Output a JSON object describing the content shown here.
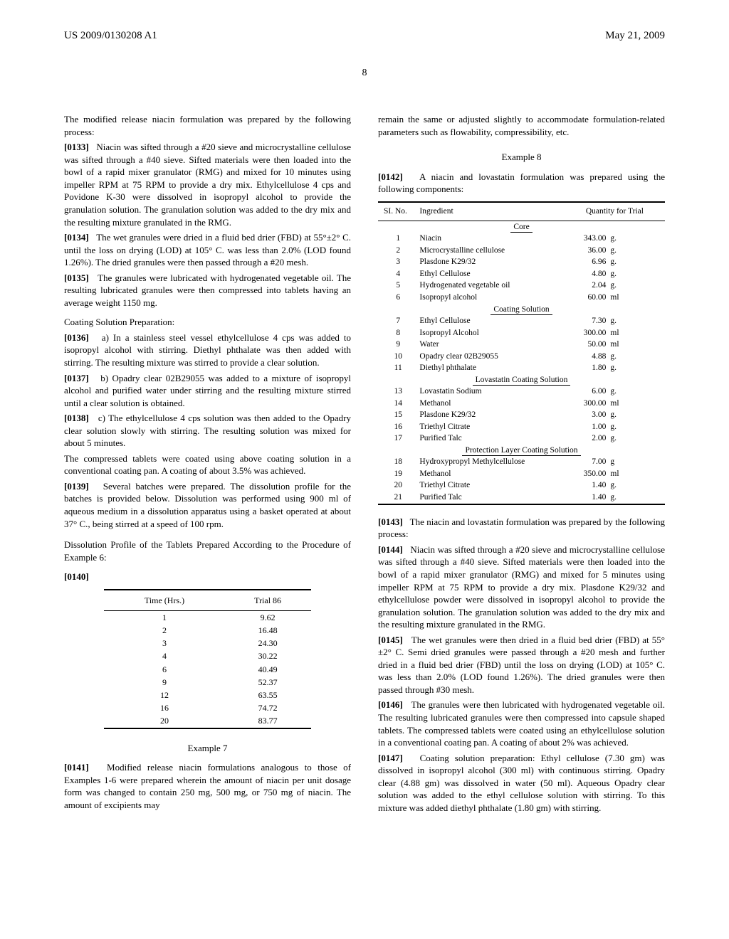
{
  "header": {
    "left": "US 2009/0130208 A1",
    "right": "May 21, 2009"
  },
  "page_number": "8",
  "left_column": {
    "p_intro": "The modified release niacin formulation was prepared by the following process:",
    "p0133": "Niacin was sifted through a #20 sieve and microcrystalline cellulose was sifted through a #40 sieve. Sifted materials were then loaded into the bowl of a rapid mixer granulator (RMG) and mixed for 10 minutes using impeller RPM at 75 RPM to provide a dry mix. Ethylcellulose 4 cps and Povidone K-30 were dissolved in isopropyl alcohol to provide the granulation solution. The granulation solution was added to the dry mix and the resulting mixture granulated in the RMG.",
    "p0134": "The wet granules were dried in a fluid bed drier (FBD) at 55°±2° C. until the loss on drying (LOD) at 105° C. was less than 2.0% (LOD found 1.26%). The dried granules were then passed through a #20 mesh.",
    "p0135": "The granules were lubricated with hydrogenated vegetable oil. The resulting lubricated granules were then compressed into tablets having an average weight 1150 mg.",
    "coating_prep_heading": "Coating Solution Preparation:",
    "p0136": "a) In a stainless steel vessel ethylcellulose 4 cps was added to isopropyl alcohol with stirring. Diethyl phthalate was then added with stirring. The resulting mixture was stirred to provide a clear solution.",
    "p0137": "b) Opadry clear 02B29055 was added to a mixture of isopropyl alcohol and purified water under stirring and the resulting mixture stirred until a clear solution is obtained.",
    "p0138": "c) The ethylcellulose 4 cps solution was then added to the Opadry clear solution slowly with stirring. The resulting solution was mixed for about 5 minutes.",
    "p_after_0138": "The compressed tablets were coated using above coating solution in a conventional coating pan. A coating of about 3.5% was achieved.",
    "p0139": "Several batches were prepared. The dissolution profile for the batches is provided below. Dissolution was performed using 900 ml of aqueous medium in a dissolution apparatus using a basket operated at about 37° C., being stirred at a speed of 100 rpm.",
    "diss_heading": "Dissolution Profile of the Tablets Prepared According to the Procedure of Example 6:",
    "num_0140": "[0140]",
    "dissolution_table": {
      "headers": [
        "Time (Hrs.)",
        "Trial 86"
      ],
      "rows": [
        [
          "1",
          "9.62"
        ],
        [
          "2",
          "16.48"
        ],
        [
          "3",
          "24.30"
        ],
        [
          "4",
          "30.22"
        ],
        [
          "6",
          "40.49"
        ],
        [
          "9",
          "52.37"
        ],
        [
          "12",
          "63.55"
        ],
        [
          "16",
          "74.72"
        ],
        [
          "20",
          "83.77"
        ]
      ]
    },
    "example7_heading": "Example 7",
    "p0141": "Modified release niacin formulations analogous to those of Examples 1-6 were prepared wherein the amount of niacin per unit dosage form was changed to contain 250 mg, 500 mg, or 750 mg of niacin. The amount of excipients may"
  },
  "right_column": {
    "p_cont": "remain the same or adjusted slightly to accommodate formulation-related parameters such as flowability, compressibility, etc.",
    "example8_heading": "Example 8",
    "p0142": "A niacin and lovastatin formulation was prepared using the following components:",
    "ingredients_table": {
      "headers": {
        "sl": "SI. No.",
        "ing": "Ingredient",
        "qty": "Quantity for Trial"
      },
      "sections": [
        {
          "title": "Core",
          "rows": [
            [
              "1",
              "Niacin",
              "343.00",
              "g."
            ],
            [
              "2",
              "Microcrystalline cellulose",
              "36.00",
              "g."
            ],
            [
              "3",
              "Plasdone K29/32",
              "6.96",
              "g."
            ],
            [
              "4",
              "Ethyl Cellulose",
              "4.80",
              "g."
            ],
            [
              "5",
              "Hydrogenated vegetable oil",
              "2.04",
              "g."
            ],
            [
              "6",
              "Isopropyl alcohol",
              "60.00",
              "ml"
            ]
          ]
        },
        {
          "title": "Coating Solution",
          "rows": [
            [
              "7",
              "Ethyl Cellulose",
              "7.30",
              "g."
            ],
            [
              "8",
              "Isopropyl Alcohol",
              "300.00",
              "ml"
            ],
            [
              "9",
              "Water",
              "50.00",
              "ml"
            ],
            [
              "10",
              "Opadry clear 02B29055",
              "4.88",
              "g."
            ],
            [
              "11",
              "Diethyl phthalate",
              "1.80",
              "g."
            ]
          ]
        },
        {
          "title": "Lovastatin Coating Solution",
          "rows": [
            [
              "13",
              "Lovastatin Sodium",
              "6.00",
              "g."
            ],
            [
              "14",
              "Methanol",
              "300.00",
              "ml"
            ],
            [
              "15",
              "Plasdone K29/32",
              "3.00",
              "g."
            ],
            [
              "16",
              "Triethyl Citrate",
              "1.00",
              "g."
            ],
            [
              "17",
              "Purified Talc",
              "2.00",
              "g."
            ]
          ]
        },
        {
          "title": "Protection Layer Coating Solution",
          "rows": [
            [
              "18",
              "Hydroxypropyl Methylcellulose",
              "7.00",
              "g"
            ],
            [
              "19",
              "Methanol",
              "350.00",
              "ml"
            ],
            [
              "20",
              "Triethyl Citrate",
              "1.40",
              "g."
            ],
            [
              "21",
              "Purified Talc",
              "1.40",
              "g."
            ]
          ]
        }
      ]
    },
    "p0143": "The niacin and lovastatin formulation was prepared by the following process:",
    "p0144": "Niacin was sifted through a #20 sieve and microcrystalline cellulose was sifted through a #40 sieve. Sifted materials were then loaded into the bowl of a rapid mixer granulator (RMG) and mixed for 5 minutes using impeller RPM at 75 RPM to provide a dry mix. Plasdone K29/32 and ethylcellulose powder were dissolved in isopropyl alcohol to provide the granulation solution. The granulation solution was added to the dry mix and the resulting mixture granulated in the RMG.",
    "p0145": "The wet granules were then dried in a fluid bed drier (FBD) at 55°±2° C. Semi dried granules were passed through a #20 mesh and further dried in a fluid bed drier (FBD) until the loss on drying (LOD) at 105° C. was less than 2.0% (LOD found 1.26%). The dried granules were then passed through #30 mesh.",
    "p0146": "The granules were then lubricated with hydrogenated vegetable oil. The resulting lubricated granules were then compressed into capsule shaped tablets. The compressed tablets were coated using an ethylcellulose solution in a conventional coating pan. A coating of about 2% was achieved.",
    "p0147": "Coating solution preparation: Ethyl cellulose (7.30 gm) was dissolved in isopropyl alcohol (300 ml) with continuous stirring. Opadry clear (4.88 gm) was dissolved in water (50 ml). Aqueous Opadry clear solution was added to the ethyl cellulose solution with stirring. To this mixture was added diethyl phthalate (1.80 gm) with stirring."
  },
  "labels": {
    "n0133": "[0133]",
    "n0134": "[0134]",
    "n0135": "[0135]",
    "n0136": "[0136]",
    "n0137": "[0137]",
    "n0138": "[0138]",
    "n0139": "[0139]",
    "n0140": "[0140]",
    "n0141": "[0141]",
    "n0142": "[0142]",
    "n0143": "[0143]",
    "n0144": "[0144]",
    "n0145": "[0145]",
    "n0146": "[0146]",
    "n0147": "[0147]"
  }
}
